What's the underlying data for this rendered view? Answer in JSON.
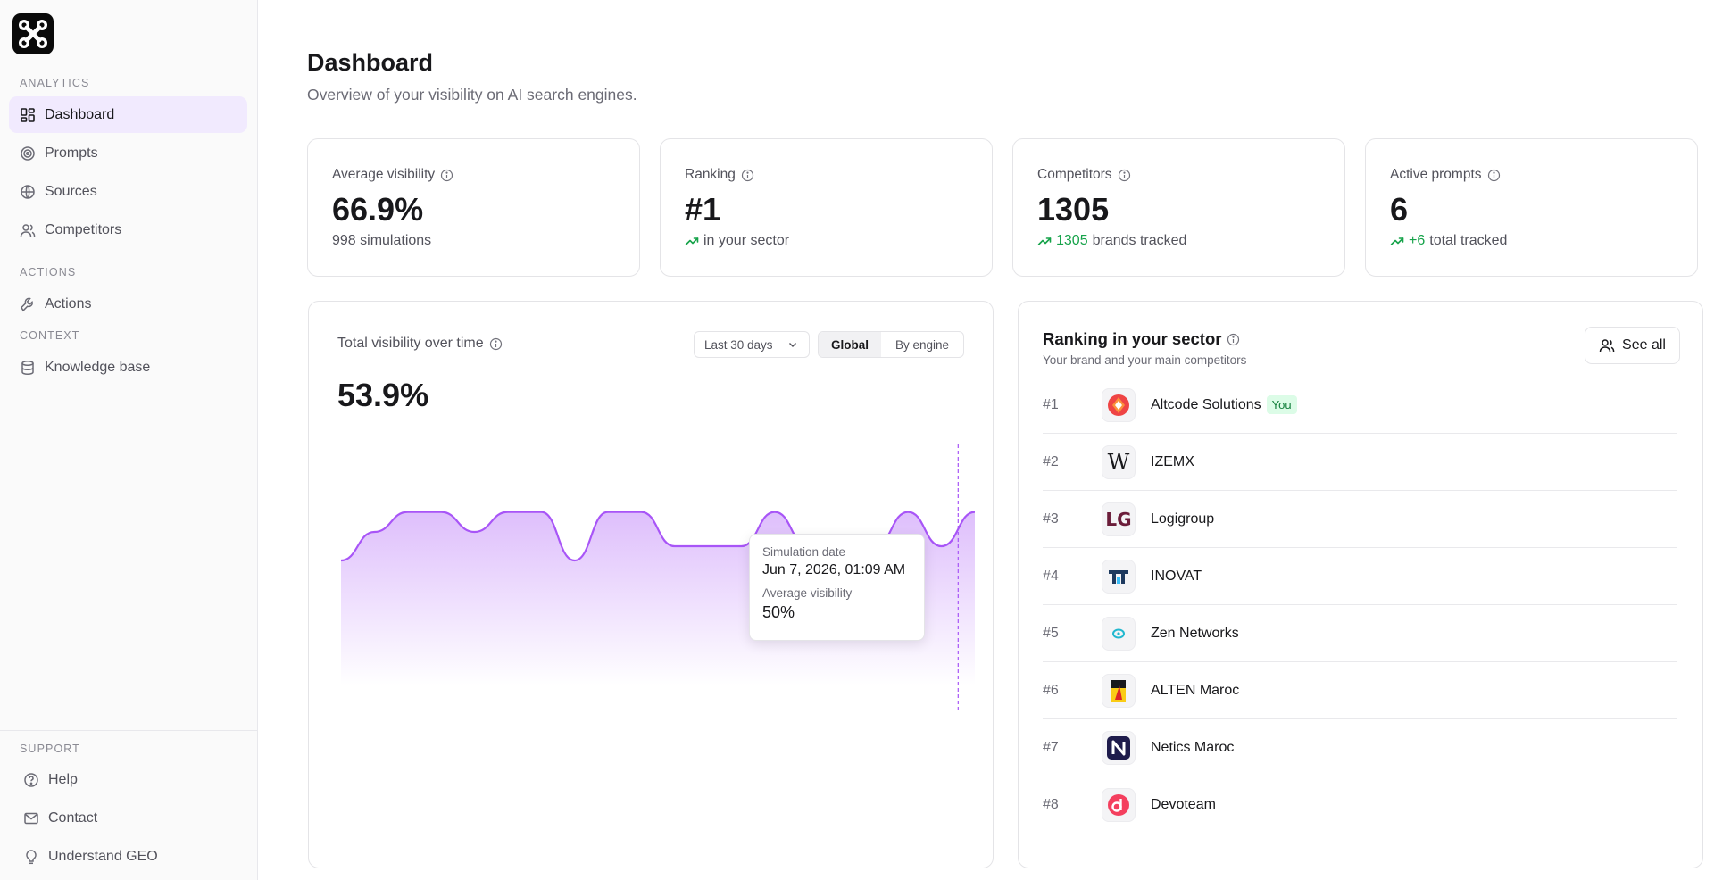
{
  "sidebar": {
    "sections": {
      "analytics": "ANALYTICS",
      "actions": "ACTIONS",
      "context": "CONTEXT",
      "support": "SUPPORT"
    },
    "items": [
      {
        "label": "Dashboard",
        "icon": "grid-icon",
        "active": true
      },
      {
        "label": "Prompts",
        "icon": "target-icon"
      },
      {
        "label": "Sources",
        "icon": "globe-icon"
      },
      {
        "label": "Competitors",
        "icon": "users-icon"
      },
      {
        "label": "Actions",
        "icon": "wrench-icon"
      },
      {
        "label": "Knowledge base",
        "icon": "database-icon"
      }
    ],
    "support_items": [
      {
        "label": "Help",
        "icon": "help-circle-icon"
      },
      {
        "label": "Contact",
        "icon": "mail-icon"
      },
      {
        "label": "Understand GEO",
        "icon": "lightbulb-icon"
      }
    ]
  },
  "header": {
    "title": "Dashboard",
    "subtitle": "Overview of your visibility on AI search engines."
  },
  "stats": [
    {
      "label": "Average visibility",
      "value": "66.9%",
      "sub": "998 simulations",
      "highlight": ""
    },
    {
      "label": "Ranking",
      "value": "#1",
      "sub": "in your sector",
      "highlight": ""
    },
    {
      "label": "Competitors",
      "value": "1305",
      "sub": "brands tracked",
      "highlight": "1305"
    },
    {
      "label": "Active prompts",
      "value": "6",
      "sub": "total tracked",
      "highlight": "+6"
    }
  ],
  "visibility_chart": {
    "title": "Total visibility over time",
    "value": "53.9%",
    "range_select": "Last 30 days",
    "segments": [
      "Global",
      "By engine"
    ],
    "active_segment": "Global",
    "tooltip": {
      "date_label": "Simulation date",
      "date_value": "Jun 7, 2026, 01:09 AM",
      "vis_label": "Average visibility",
      "vis_value": "50%"
    }
  },
  "chart_data": {
    "type": "area",
    "title": "Total visibility over time",
    "xlabel": "",
    "ylabel": "",
    "series": [
      {
        "values": [
          50,
          60,
          67,
          67,
          60,
          67,
          67,
          50,
          67,
          67,
          55,
          55,
          55,
          67,
          55,
          55,
          55,
          67,
          55,
          67
        ]
      }
    ],
    "ylim": [
      0,
      100
    ],
    "grid": false,
    "color": "#a855f7"
  },
  "ranking": {
    "title": "Ranking in your sector",
    "subtitle": "Your brand and your main competitors",
    "see_all": "See all",
    "you_badge": "You",
    "rows": [
      {
        "rank": "#1",
        "name": "Altcode Solutions",
        "you": true,
        "logo": "altcode-logo"
      },
      {
        "rank": "#2",
        "name": "IZEMX",
        "you": false,
        "logo": "wikipedia-logo"
      },
      {
        "rank": "#3",
        "name": "Logigroup",
        "you": false,
        "logo": "lg-logo"
      },
      {
        "rank": "#4",
        "name": "INOVAT",
        "you": false,
        "logo": "inovat-logo"
      },
      {
        "rank": "#5",
        "name": "Zen Networks",
        "you": false,
        "logo": "zen-logo"
      },
      {
        "rank": "#6",
        "name": "ALTEN Maroc",
        "you": false,
        "logo": "alten-logo"
      },
      {
        "rank": "#7",
        "name": "Netics Maroc",
        "you": false,
        "logo": "netics-logo"
      },
      {
        "rank": "#8",
        "name": "Devoteam",
        "you": false,
        "logo": "devoteam-logo"
      }
    ]
  },
  "colors": {
    "accent": "#a855f7",
    "active_nav_bg": "#f1eafe",
    "positive": "#16a34a"
  }
}
